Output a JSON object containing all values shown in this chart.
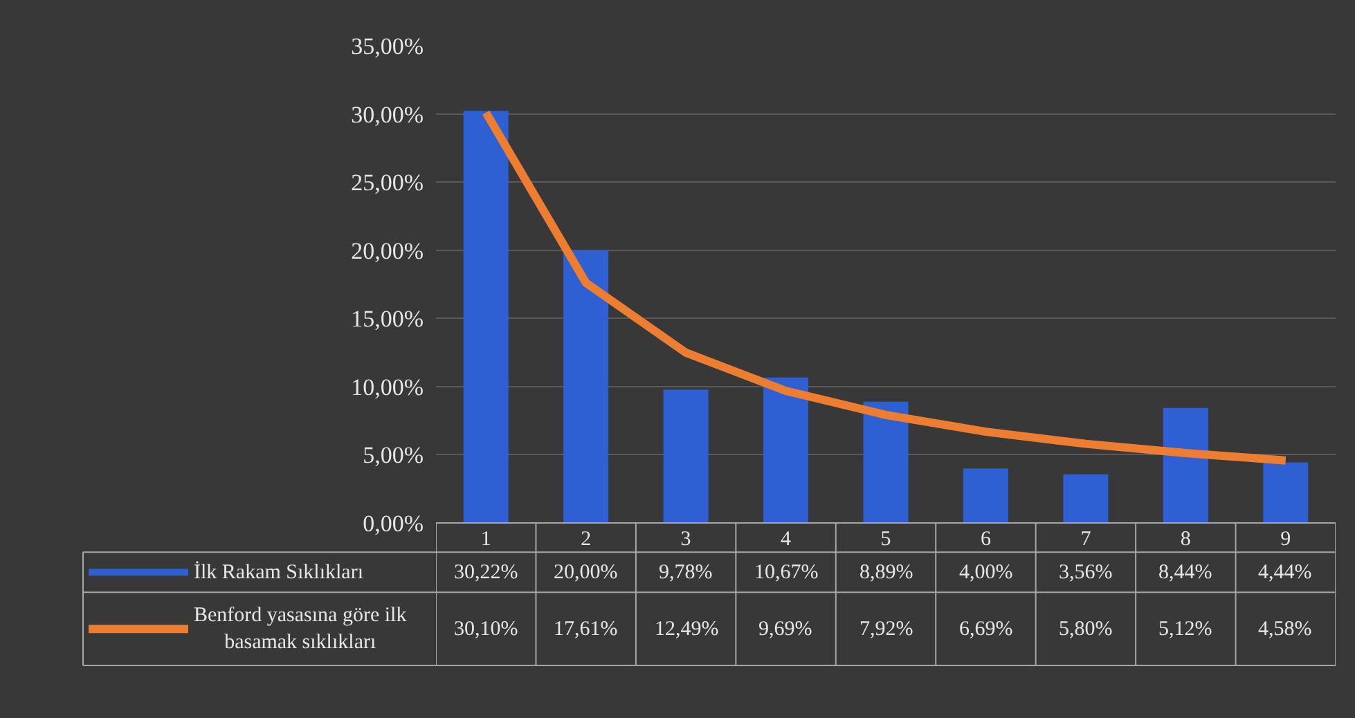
{
  "chart_data": {
    "type": "bar",
    "categories": [
      "1",
      "2",
      "3",
      "4",
      "5",
      "6",
      "7",
      "8",
      "9"
    ],
    "ylim": [
      0,
      35
    ],
    "yticks": [
      {
        "value": 0,
        "label": "0,00%"
      },
      {
        "value": 5,
        "label": "5,00%"
      },
      {
        "value": 10,
        "label": "10,00%"
      },
      {
        "value": 15,
        "label": "15,00%"
      },
      {
        "value": 20,
        "label": "20,00%"
      },
      {
        "value": 25,
        "label": "25,00%"
      },
      {
        "value": 30,
        "label": "30,00%"
      },
      {
        "value": 35,
        "label": "35,00%"
      }
    ],
    "grid": "y",
    "legend": "bottom left",
    "series": [
      {
        "name": "İlk Rakam Sıklıkları",
        "color": "#2e5fd3",
        "values": [
          30.22,
          20.0,
          9.78,
          10.67,
          8.89,
          4.0,
          3.56,
          8.44,
          4.44
        ],
        "value_labels": [
          "30,22%",
          "20,00%",
          "9,78%",
          "10,67%",
          "8,89%",
          "4,00%",
          "3,56%",
          "8,44%",
          "4,44%"
        ]
      },
      {
        "name": "Benford yasasına göre ilk basamak sıklıkları",
        "type": "line",
        "color": "#ed7d31",
        "values": [
          30.1,
          17.61,
          12.49,
          9.69,
          7.92,
          6.69,
          5.8,
          5.12,
          4.58
        ],
        "value_labels": [
          "30,10%",
          "17,61%",
          "12,49%",
          "9,69%",
          "7,92%",
          "6,69%",
          "5,80%",
          "5,12%",
          "4,58%"
        ]
      }
    ]
  }
}
